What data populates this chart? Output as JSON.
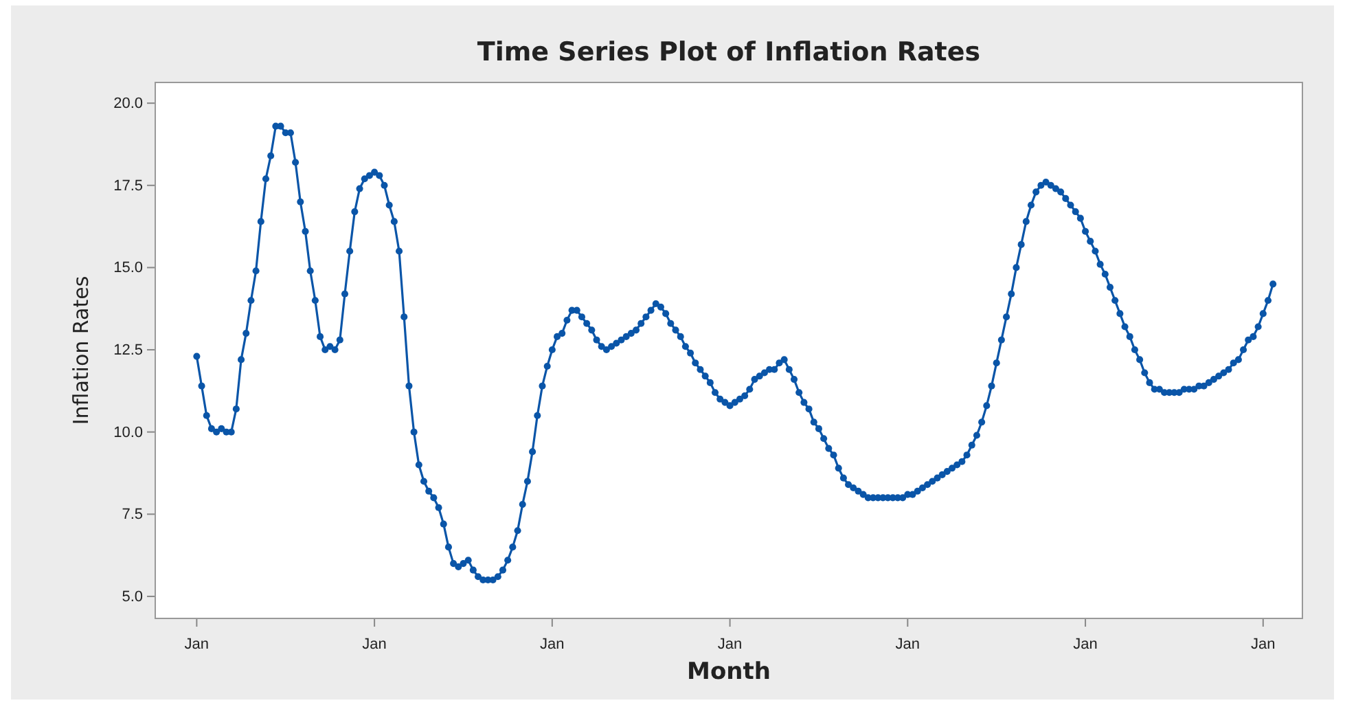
{
  "chart_data": {
    "type": "line",
    "title": "Time Series Plot of Inflation Rates",
    "xlabel": "Month",
    "ylabel": "Inflation Rates",
    "categories": [
      "Jan",
      null,
      null,
      null,
      null,
      null,
      null,
      null,
      null,
      null,
      null,
      null,
      null,
      null,
      null,
      null,
      null,
      null,
      null,
      null,
      null,
      null,
      null,
      null,
      null,
      null,
      null,
      null,
      null,
      null,
      null,
      null,
      null,
      null,
      null,
      null,
      "Jan",
      null,
      null,
      null,
      null,
      null,
      null,
      null,
      null,
      null,
      null,
      null,
      null,
      null,
      null,
      null,
      null,
      null,
      null,
      null,
      null,
      null,
      null,
      null,
      null,
      null,
      null,
      null,
      null,
      null,
      null,
      null,
      null,
      null,
      null,
      null,
      "Jan",
      null,
      null,
      null,
      null,
      null,
      null,
      null,
      null,
      null,
      null,
      null,
      null,
      null,
      null,
      null,
      null,
      null,
      null,
      null,
      null,
      null,
      null,
      null,
      null,
      null,
      null,
      null,
      null,
      null,
      null,
      null,
      null,
      null,
      null,
      null,
      "Jan",
      null,
      null,
      null,
      null,
      null,
      null,
      null,
      null,
      null,
      null,
      null,
      null,
      null,
      null,
      null,
      null,
      null,
      null,
      null,
      null,
      null,
      null,
      null,
      null,
      null,
      null,
      null,
      null,
      null,
      null,
      null,
      null,
      null,
      null,
      null,
      "Jan",
      null,
      null,
      null,
      null,
      null,
      null,
      null,
      null,
      null,
      null,
      null,
      null,
      null,
      null,
      null,
      null,
      null,
      null,
      null,
      null,
      null,
      null,
      null,
      null,
      null,
      null,
      null,
      null,
      null,
      null,
      null,
      null,
      null,
      null,
      null,
      "Jan",
      null,
      null,
      null,
      null,
      null,
      null,
      null,
      null,
      null,
      null,
      null,
      null,
      null,
      null,
      null,
      null,
      null,
      null,
      null,
      null,
      null,
      null,
      null,
      null,
      null,
      null,
      null,
      null,
      null,
      null,
      null,
      null,
      null,
      null,
      null,
      "Jan",
      null,
      null
    ],
    "series": [
      {
        "color": "#0a55a8",
        "values": [
          12.3,
          11.4,
          10.5,
          10.1,
          10.0,
          10.1,
          10.0,
          10.0,
          10.7,
          12.2,
          13.0,
          14.0,
          14.9,
          16.4,
          17.7,
          18.4,
          19.3,
          19.3,
          19.1,
          19.1,
          18.2,
          17.0,
          16.1,
          14.9,
          14.0,
          12.9,
          12.5,
          12.6,
          12.5,
          12.8,
          14.2,
          15.5,
          16.7,
          17.4,
          17.7,
          17.8,
          17.9,
          17.8,
          17.5,
          16.9,
          16.4,
          15.5,
          13.5,
          11.4,
          10.0,
          9.0,
          8.5,
          8.2,
          8.0,
          7.7,
          7.2,
          6.5,
          6.0,
          5.9,
          6.0,
          6.1,
          5.8,
          5.6,
          5.5,
          5.5,
          5.5,
          5.6,
          5.8,
          6.1,
          6.5,
          7.0,
          7.8,
          8.5,
          9.4,
          10.5,
          11.4,
          12.0,
          12.5,
          12.9,
          13.0,
          13.4,
          13.7,
          13.7,
          13.5,
          13.3,
          13.1,
          12.8,
          12.6,
          12.5,
          12.6,
          12.7,
          12.8,
          12.9,
          13.0,
          13.1,
          13.3,
          13.5,
          13.7,
          13.9,
          13.8,
          13.6,
          13.3,
          13.1,
          12.9,
          12.6,
          12.4,
          12.1,
          11.9,
          11.7,
          11.5,
          11.2,
          11.0,
          10.9,
          10.8,
          10.9,
          11.0,
          11.1,
          11.3,
          11.6,
          11.7,
          11.8,
          11.9,
          11.9,
          12.1,
          12.2,
          11.9,
          11.6,
          11.2,
          10.9,
          10.7,
          10.3,
          10.1,
          9.8,
          9.5,
          9.3,
          8.9,
          8.6,
          8.4,
          8.3,
          8.2,
          8.1,
          8.0,
          8.0,
          8.0,
          8.0,
          8.0,
          8.0,
          8.0,
          8.0,
          8.1,
          8.1,
          8.2,
          8.3,
          8.4,
          8.5,
          8.6,
          8.7,
          8.8,
          8.9,
          9.0,
          9.1,
          9.3,
          9.6,
          9.9,
          10.3,
          10.8,
          11.4,
          12.1,
          12.8,
          13.5,
          14.2,
          15.0,
          15.7,
          16.4,
          16.9,
          17.3,
          17.5,
          17.6,
          17.5,
          17.4,
          17.3,
          17.1,
          16.9,
          16.7,
          16.5,
          16.1,
          15.8,
          15.5,
          15.1,
          14.8,
          14.4,
          14.0,
          13.6,
          13.2,
          12.9,
          12.5,
          12.2,
          11.8,
          11.5,
          11.3,
          11.3,
          11.2,
          11.2,
          11.2,
          11.2,
          11.3,
          11.3,
          11.3,
          11.4,
          11.4,
          11.5,
          11.6,
          11.7,
          11.8,
          11.9,
          12.1,
          12.2,
          12.5,
          12.8,
          12.9,
          13.2,
          13.6,
          14.0,
          14.5
        ]
      }
    ],
    "ylim": [
      4.33,
      20.63
    ],
    "yticks": [
      {
        "value": 5,
        "label": "5.0"
      },
      {
        "value": 7.5,
        "label": "7.5"
      },
      {
        "value": 10,
        "label": "10.0"
      },
      {
        "value": 12.5,
        "label": "12.5"
      },
      {
        "value": 15,
        "label": "15.0"
      },
      {
        "value": 17.5,
        "label": "17.5"
      },
      {
        "value": 20,
        "label": "20.0"
      }
    ],
    "grid": false,
    "marker": "circle",
    "line_style": "solid"
  }
}
